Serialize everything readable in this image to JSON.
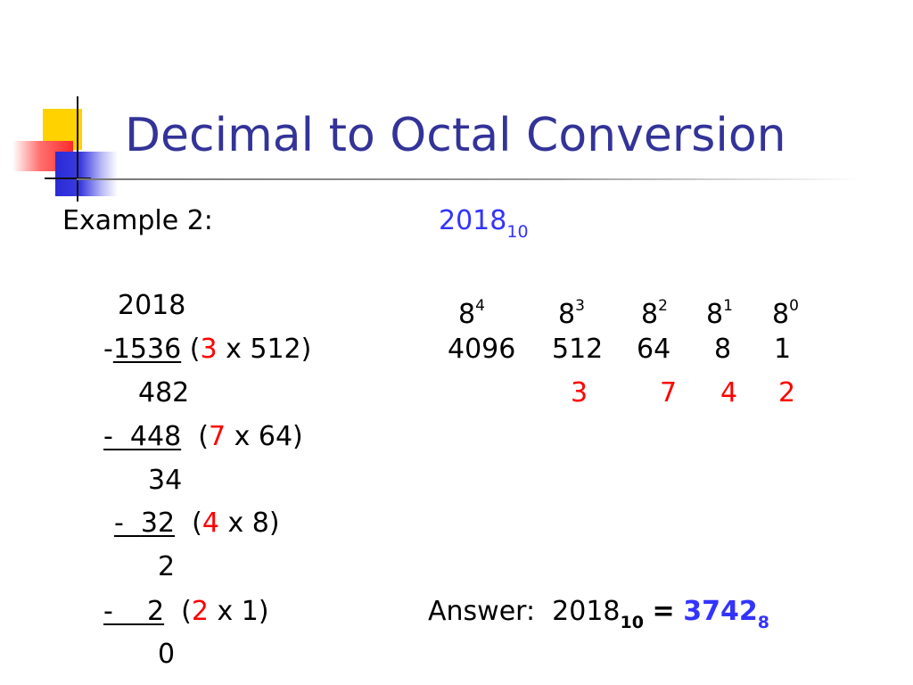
{
  "slide": {
    "title": "Decimal to Octal Conversion",
    "example_label": "Example 2:",
    "example_number": {
      "value": "2018",
      "base": "10"
    }
  },
  "subtraction": {
    "start": "2018",
    "steps": [
      {
        "minus": "-",
        "subtracted": "1536",
        "digit": "3",
        "multiplier": " x 512)",
        "open": " (",
        "remainder": "482"
      },
      {
        "minus": "-  ",
        "subtracted": "448",
        "digit": "7",
        "multiplier": " x 64)",
        "open": "  (",
        "remainder": "34"
      },
      {
        "minus": "-  ",
        "subtracted": "32",
        "digit": "4",
        "multiplier": " x 8)",
        "open": "  (",
        "remainder": "2"
      },
      {
        "minus": "-    ",
        "subtracted": "2",
        "digit": "2",
        "multiplier": " x 1)",
        "open": "  (",
        "remainder": "0"
      }
    ]
  },
  "place_values": {
    "base": "8",
    "powers": [
      "4",
      "3",
      "2",
      "1",
      "0"
    ],
    "values": [
      "4096",
      "512",
      "64",
      "8",
      "1"
    ],
    "digits": [
      "3",
      "7",
      "4",
      "2"
    ]
  },
  "answer": {
    "label": "Answer:",
    "decimal": "2018",
    "decimal_base": "10",
    "equals": "=",
    "octal": "3742",
    "octal_base": "8"
  },
  "colors": {
    "title": "#333399",
    "digit": "#ff0000",
    "accent": "#3333ff"
  }
}
